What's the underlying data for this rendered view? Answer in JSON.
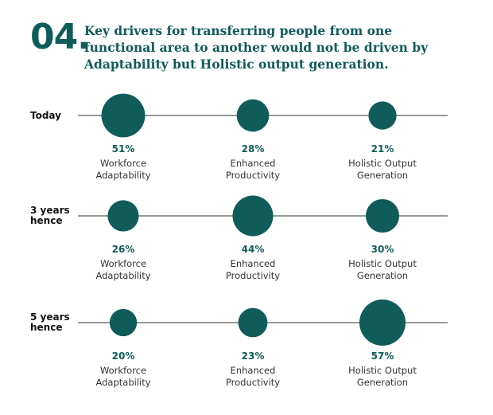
{
  "header": {
    "number": "04.",
    "title": "Key drivers for transferring people from one functional area to another would not be driven by Adaptability but Holistic output generation."
  },
  "colors": {
    "accent": "#0f5c5a",
    "line": "#777777",
    "label": "#111111"
  },
  "chart_data": {
    "type": "scatter",
    "title": "Key drivers for transferring people from one functional area to another would not be driven by Adaptability but Holistic output generation.",
    "unit": "%",
    "categories": [
      [
        "Workforce",
        "Adaptability"
      ],
      [
        "Enhanced",
        "Productivity"
      ],
      [
        "Holistic Output",
        "Generation"
      ]
    ],
    "rows": [
      {
        "label": [
          "Today"
        ],
        "values": [
          51,
          28,
          21
        ]
      },
      {
        "label": [
          "3 years",
          "hence"
        ],
        "values": [
          26,
          44,
          30
        ]
      },
      {
        "label": [
          "5 years",
          "hence"
        ],
        "values": [
          20,
          23,
          57
        ]
      }
    ]
  }
}
